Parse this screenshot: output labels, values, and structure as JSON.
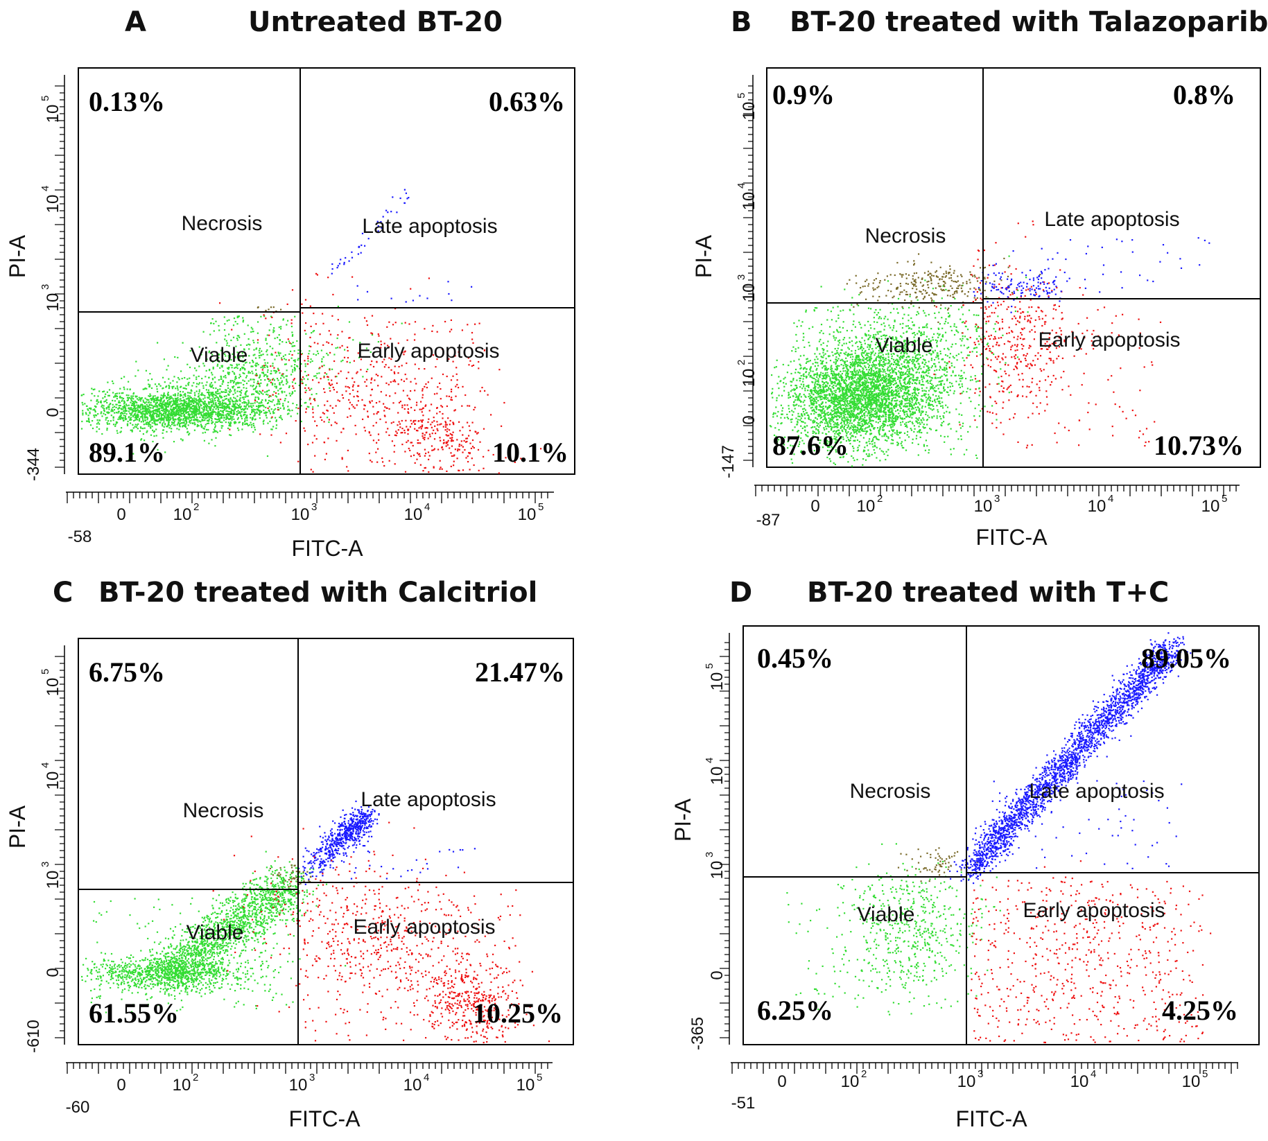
{
  "chart_data": [
    {
      "type": "scatter",
      "panel": "A",
      "title": "Untreated BT-20",
      "xlabel": "FITC-A",
      "ylabel": "PI-A",
      "x_min_label": "-58",
      "y_min_label": "-344",
      "x_ticks": [
        "0",
        "10",
        "10",
        "10",
        "10"
      ],
      "x_tick_exps": [
        "",
        "2",
        "3",
        "4",
        "5"
      ],
      "y_ticks": [
        "0",
        "10",
        "10",
        "10"
      ],
      "y_tick_exps": [
        "",
        "3",
        "4",
        "5"
      ],
      "quadrant_labels": {
        "ul": "Necrosis",
        "ur": "Late apoptosis",
        "ll": "Viable",
        "lr": "Early apoptosis"
      },
      "quadrants": {
        "ul": "0.13%",
        "ur": "0.63%",
        "ll": "89.1%",
        "lr": "10.1%"
      },
      "populations": {
        "viable": "spread",
        "early_apoptosis": "moderate",
        "late_apoptosis": "sparse",
        "necrosis": "few"
      },
      "series_colors": {
        "viable": "#33dd33",
        "early": "#ee1111",
        "late": "#1a1aff",
        "necrosis": "#7a6a2a"
      }
    },
    {
      "type": "scatter",
      "panel": "B",
      "title": "BT-20 treated with Talazoparib",
      "xlabel": "FITC-A",
      "ylabel": "PI-A",
      "x_min_label": "-87",
      "y_min_label": "-147",
      "x_ticks": [
        "0",
        "10",
        "10",
        "10",
        "10"
      ],
      "x_tick_exps": [
        "",
        "2",
        "3",
        "4",
        "5"
      ],
      "y_ticks": [
        "0",
        "10",
        "10",
        "10",
        "10"
      ],
      "y_tick_exps": [
        "",
        "2",
        "3",
        "4",
        "5"
      ],
      "quadrant_labels": {
        "ul": "Necrosis",
        "ur": "Late apoptosis",
        "ll": "Viable",
        "lr": "Early apoptosis"
      },
      "quadrants": {
        "ul": "0.9%",
        "ur": "0.8%",
        "ll": "87.6%",
        "lr": "10.73%"
      },
      "populations": {
        "viable": "dense-cluster",
        "early_apoptosis": "moderate",
        "late_apoptosis": "sparse",
        "necrosis": "band"
      },
      "series_colors": {
        "viable": "#33dd33",
        "early": "#ee1111",
        "late": "#1a1aff",
        "necrosis": "#7a6a2a"
      }
    },
    {
      "type": "scatter",
      "panel": "C",
      "title": "BT-20 treated with Calcitriol",
      "xlabel": "FITC-A",
      "ylabel": "PI-A",
      "x_min_label": "-60",
      "y_min_label": "-610",
      "x_ticks": [
        "0",
        "10",
        "10",
        "10",
        "10"
      ],
      "x_tick_exps": [
        "",
        "2",
        "3",
        "4",
        "5"
      ],
      "y_ticks": [
        "0",
        "10",
        "10",
        "10"
      ],
      "y_tick_exps": [
        "",
        "3",
        "4",
        "5"
      ],
      "quadrant_labels": {
        "ul": "Necrosis",
        "ur": "Late apoptosis",
        "ll": "Viable",
        "lr": "Early apoptosis"
      },
      "quadrants": {
        "ul": "6.75%",
        "ur": "21.47%",
        "ll": "61.55%",
        "lr": "10.25%"
      },
      "populations": {
        "viable": "diagonal",
        "early_apoptosis": "dense",
        "late_apoptosis": "diagonal",
        "necrosis": "few"
      },
      "series_colors": {
        "viable": "#33dd33",
        "early": "#ee1111",
        "late": "#1a1aff",
        "necrosis": "#7a6a2a"
      }
    },
    {
      "type": "scatter",
      "panel": "D",
      "title": "BT-20 treated with T+C",
      "xlabel": "FITC-A",
      "ylabel": "PI-A",
      "x_min_label": "-51",
      "y_min_label": "-365",
      "x_ticks": [
        "0",
        "10",
        "10",
        "10",
        "10"
      ],
      "x_tick_exps": [
        "",
        "2",
        "3",
        "4",
        "5"
      ],
      "y_ticks": [
        "0",
        "10",
        "10",
        "10"
      ],
      "y_tick_exps": [
        "",
        "3",
        "4",
        "5"
      ],
      "quadrant_labels": {
        "ul": "Necrosis",
        "ur": "Late apoptosis",
        "ll": "Viable",
        "lr": "Early apoptosis"
      },
      "quadrants": {
        "ul": "0.45%",
        "ur": "89.05%",
        "ll": "6.25%",
        "lr": "4.25%"
      },
      "populations": {
        "viable": "sparse",
        "early_apoptosis": "moderate",
        "late_apoptosis": "dense-diagonal",
        "necrosis": "few"
      },
      "series_colors": {
        "viable": "#33dd33",
        "early": "#ee1111",
        "late": "#1a1aff",
        "necrosis": "#7a6a2a"
      }
    }
  ],
  "panel_letters": [
    "A",
    "B",
    "C",
    "D"
  ]
}
